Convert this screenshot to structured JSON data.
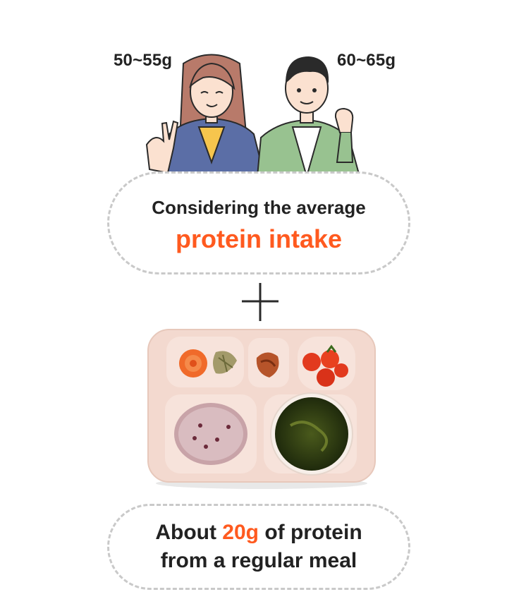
{
  "people": {
    "female_intake": "50~55g",
    "male_intake": "60~65g"
  },
  "top_box": {
    "line1": "Considering the average",
    "line2": "protein intake"
  },
  "bottom_box": {
    "line1_pre": "About ",
    "line1_accent": "20g",
    "line1_post": " of protein",
    "line2": "from a regular meal"
  },
  "colors": {
    "accent": "#ff5a1f",
    "text": "#222222",
    "dashed_border": "#c9c9c9",
    "tray": "#f3d9cf"
  },
  "icons": {
    "operator": "plus-icon"
  }
}
